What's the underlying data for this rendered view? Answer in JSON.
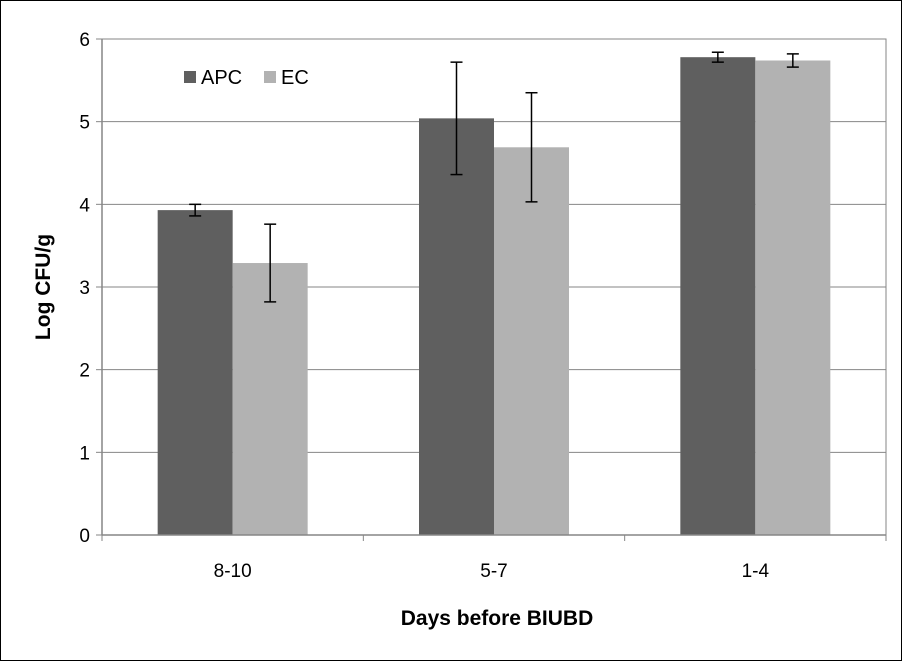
{
  "chart_data": {
    "type": "bar",
    "title": "",
    "xlabel": "Days  before BIUBD",
    "ylabel": "Log CFU/g",
    "categories": [
      "8-10",
      "5-7",
      "1-4"
    ],
    "series": [
      {
        "name": "APC",
        "color": "#5f5f5f",
        "values": [
          3.93,
          5.04,
          5.78
        ],
        "error": [
          0.07,
          0.68,
          0.06
        ]
      },
      {
        "name": "EC",
        "color": "#b2b2b2",
        "values": [
          3.29,
          4.69,
          5.74
        ],
        "error": [
          0.47,
          0.66,
          0.08
        ]
      }
    ],
    "ylim": [
      0,
      6
    ],
    "yticks": [
      "0",
      "1",
      "2",
      "3",
      "4",
      "5",
      "6"
    ],
    "grid": true,
    "legend_position": "top-left",
    "error_bars": true
  }
}
